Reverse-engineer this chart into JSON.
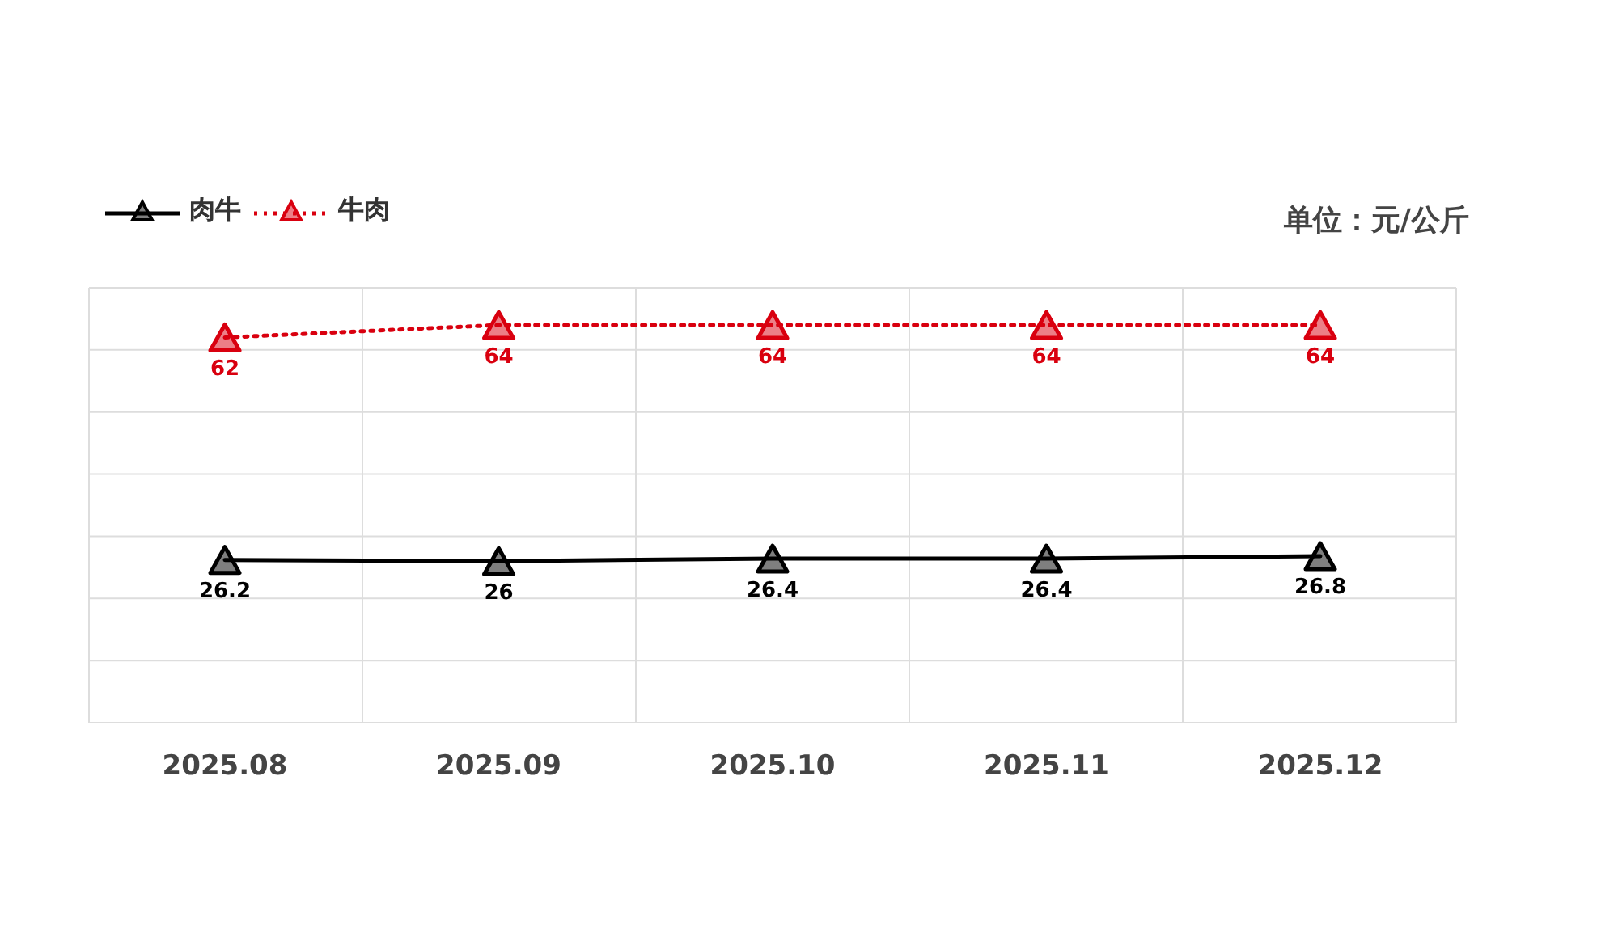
{
  "chart_data": {
    "type": "line",
    "ylabel": "单位：元/公斤",
    "categories": [
      "2025.08",
      "2025.09",
      "2025.10",
      "2025.11",
      "2025.12"
    ],
    "series": [
      {
        "name": "肉牛",
        "color": "#000000",
        "line_style": "solid",
        "values": [
          26.2,
          26,
          26.4,
          26.4,
          26.8
        ]
      },
      {
        "name": "牛肉",
        "color": "#d9000f",
        "line_style": "dotted",
        "values": [
          62,
          64,
          64,
          64,
          64
        ]
      }
    ],
    "ylim": [
      0,
      70
    ],
    "tick_labels": "x",
    "grid": true,
    "legend": "top left",
    "marker": "triangle",
    "data_labels": true
  }
}
